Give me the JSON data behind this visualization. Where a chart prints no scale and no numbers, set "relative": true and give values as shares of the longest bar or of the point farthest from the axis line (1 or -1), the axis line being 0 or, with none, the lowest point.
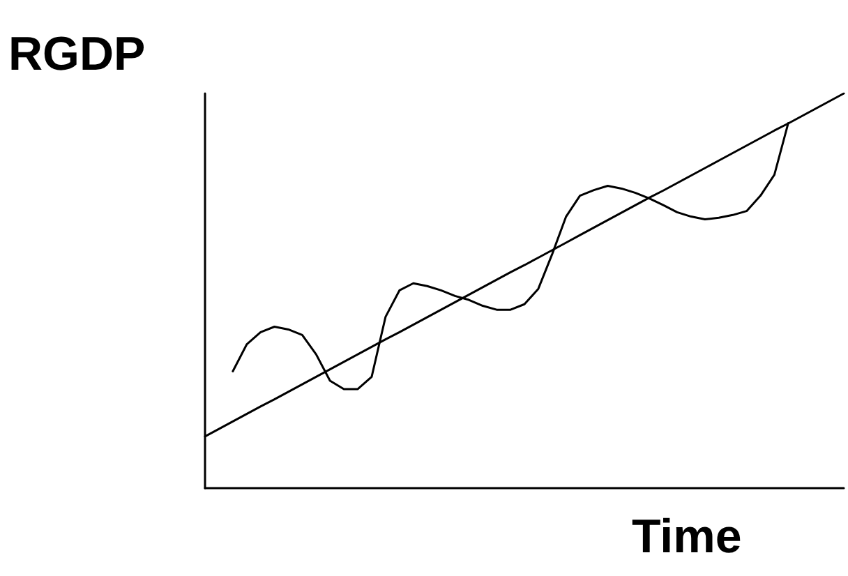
{
  "chart_data": {
    "type": "line",
    "relative": true,
    "ylabel": "RGDP",
    "xlabel": "Time",
    "grid": false,
    "marker": "none",
    "line_style": "solid",
    "categories": [
      null,
      null,
      null,
      null,
      null,
      null,
      null,
      null,
      null,
      null,
      null,
      null,
      null,
      null,
      null,
      null,
      null,
      null,
      null,
      null,
      null,
      null,
      null,
      null,
      null,
      null,
      null,
      null,
      null,
      null,
      null,
      null,
      null,
      null,
      null,
      null,
      null,
      null,
      null,
      null,
      null,
      null,
      null,
      null,
      null,
      null,
      null
    ],
    "series": [
      {
        "color": "#000000",
        "values": [
          0.131,
          0.15,
          0.169,
          0.188,
          0.207,
          0.225,
          0.244,
          0.263,
          0.282,
          0.301,
          0.32,
          0.339,
          0.358,
          0.377,
          0.395,
          0.414,
          0.433,
          0.452,
          0.471,
          0.49,
          0.509,
          0.528,
          0.547,
          0.565,
          0.584,
          0.603,
          0.622,
          0.641,
          0.66,
          0.679,
          0.698,
          0.717,
          0.736,
          0.754,
          0.773,
          0.792,
          0.811,
          0.83,
          0.849,
          0.868,
          0.887,
          0.906,
          0.924,
          0.943,
          0.962,
          0.981,
          1.0
        ]
      },
      {
        "color": "#000000",
        "values": [
          null,
          null,
          0.296,
          0.364,
          0.395,
          0.409,
          0.402,
          0.388,
          0.339,
          0.272,
          0.251,
          0.251,
          0.282,
          0.434,
          0.501,
          0.519,
          0.512,
          0.501,
          0.487,
          0.477,
          0.462,
          0.452,
          0.452,
          0.466,
          0.505,
          0.593,
          0.688,
          0.741,
          0.755,
          0.766,
          0.759,
          0.748,
          0.734,
          0.717,
          0.699,
          0.688,
          0.681,
          0.685,
          0.692,
          0.702,
          0.741,
          0.794,
          0.925,
          null,
          null,
          null,
          null
        ]
      }
    ]
  }
}
